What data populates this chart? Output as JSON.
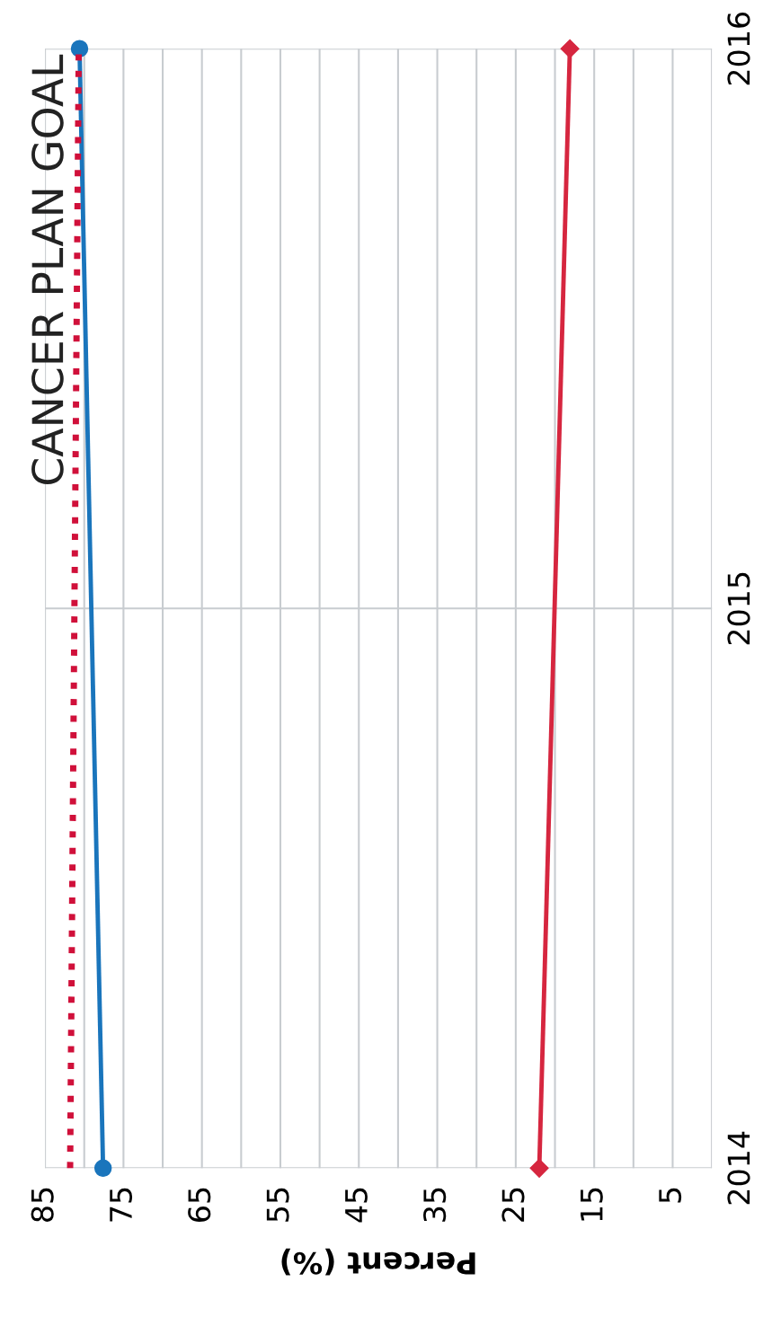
{
  "chart_data": {
    "type": "line",
    "xlabel": "Percent (%)",
    "xlim": [
      85,
      0
    ],
    "xticks": [
      85,
      {
        "value": 80,
        "label": null
      },
      75,
      {
        "value": 70,
        "label": null
      },
      65,
      {
        "value": 60,
        "label": null
      },
      55,
      {
        "value": 50,
        "label": null
      },
      45,
      {
        "value": 40,
        "label": null
      },
      35,
      {
        "value": 30,
        "label": null
      },
      25,
      {
        "value": 20,
        "label": null
      },
      15,
      {
        "value": 10,
        "label": null
      },
      5,
      {
        "value": 0,
        "label": null
      }
    ],
    "ylim": [
      2014,
      2016
    ],
    "yticks": [
      2014,
      2015,
      2016
    ],
    "grid": true,
    "legend": false,
    "series": [
      {
        "name": "CANCER PLAN GOAL",
        "color": "#d0103a",
        "x": [
          81.8,
          80.7
        ],
        "values": [
          2014,
          2016
        ],
        "line_style": "dotted",
        "marker": "none"
      },
      {
        "color": "#1a75bc",
        "x": [
          77.6,
          80.6
        ],
        "values": [
          2014,
          2016
        ],
        "line_style": "solid",
        "marker": "circle"
      },
      {
        "color": "#d6263f",
        "x": [
          22.0,
          18.1
        ],
        "values": [
          2014,
          2016
        ],
        "line_style": "solid",
        "marker": "diamond"
      }
    ]
  }
}
